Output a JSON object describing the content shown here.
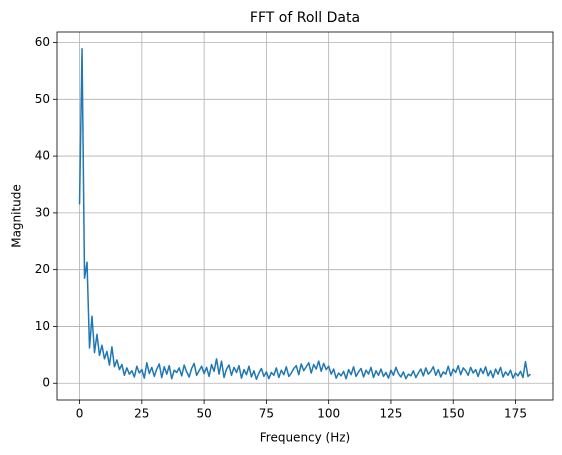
{
  "chart_data": {
    "type": "line",
    "title": "FFT of Roll Data",
    "x_label": "Frequency (Hz)",
    "y_label": "Magnitude",
    "color": "#1f77b4",
    "grid": true,
    "xlim": [
      -9.05,
      190.05
    ],
    "ylim": [
      -2.95,
      61.85
    ],
    "xticks": [
      0,
      25,
      50,
      75,
      100,
      125,
      150,
      175
    ],
    "yticks": [
      0,
      10,
      20,
      30,
      40,
      50,
      60
    ],
    "x": [
      0,
      1,
      2,
      3,
      4,
      5,
      6,
      7,
      8,
      9,
      10,
      11,
      12,
      13,
      14,
      15,
      16,
      17,
      18,
      19,
      20,
      21,
      22,
      23,
      24,
      25,
      26,
      27,
      28,
      29,
      30,
      31,
      32,
      33,
      34,
      35,
      36,
      37,
      38,
      39,
      40,
      41,
      42,
      43,
      44,
      45,
      46,
      47,
      48,
      49,
      50,
      51,
      52,
      53,
      54,
      55,
      56,
      57,
      58,
      59,
      60,
      61,
      62,
      63,
      64,
      65,
      66,
      67,
      68,
      69,
      70,
      71,
      72,
      73,
      74,
      75,
      76,
      77,
      78,
      79,
      80,
      81,
      82,
      83,
      84,
      85,
      86,
      87,
      88,
      89,
      90,
      91,
      92,
      93,
      94,
      95,
      96,
      97,
      98,
      99,
      100,
      101,
      102,
      103,
      104,
      105,
      106,
      107,
      108,
      109,
      110,
      111,
      112,
      113,
      114,
      115,
      116,
      117,
      118,
      119,
      120,
      121,
      122,
      123,
      124,
      125,
      126,
      127,
      128,
      129,
      130,
      131,
      132,
      133,
      134,
      135,
      136,
      137,
      138,
      139,
      140,
      141,
      142,
      143,
      144,
      145,
      146,
      147,
      148,
      149,
      150,
      151,
      152,
      153,
      154,
      155,
      156,
      157,
      158,
      159,
      160,
      161,
      162,
      163,
      164,
      165,
      166,
      167,
      168,
      169,
      170,
      171,
      172,
      173,
      174,
      175,
      176,
      177,
      178,
      179,
      180,
      181
    ],
    "values": [
      31.5,
      58.9,
      18.5,
      21.3,
      6.2,
      11.8,
      5.4,
      8.6,
      4.9,
      6.7,
      4.3,
      5.6,
      3.2,
      6.4,
      2.9,
      4.1,
      2.4,
      3.3,
      1.4,
      2.7,
      1.6,
      2.2,
      1.1,
      3.0,
      1.8,
      2.4,
      0.9,
      3.6,
      1.7,
      2.8,
      1.2,
      2.5,
      3.4,
      1.0,
      2.9,
      1.6,
      3.1,
      0.8,
      2.3,
      1.9,
      2.7,
      1.3,
      3.2,
      2.0,
      1.1,
      2.6,
      3.5,
      1.4,
      2.2,
      3.0,
      1.7,
      2.8,
      1.2,
      3.3,
      2.1,
      4.3,
      1.6,
      3.9,
      1.0,
      2.5,
      3.2,
      1.4,
      2.8,
      1.9,
      3.1,
      0.9,
      2.4,
      1.5,
      3.0,
      1.1,
      2.2,
      0.7,
      1.8,
      2.6,
      1.2,
      2.0,
      0.8,
      1.9,
      1.4,
      2.7,
      1.0,
      2.3,
      1.5,
      2.9,
      1.2,
      1.8,
      2.6,
      3.1,
      1.5,
      3.4,
      2.2,
      2.9,
      3.6,
      1.8,
      3.3,
      2.5,
      3.9,
      2.1,
      3.5,
      2.4,
      3.0,
      1.6,
      2.5,
      0.9,
      1.8,
      1.3,
      2.1,
      0.8,
      2.4,
      1.5,
      2.9,
      1.2,
      2.0,
      2.6,
      1.1,
      2.3,
      1.6,
      2.8,
      1.0,
      2.2,
      1.4,
      2.5,
      1.2,
      1.9,
      0.9,
      2.3,
      1.4,
      2.8,
      1.7,
      1.1,
      2.0,
      0.8,
      1.6,
      1.3,
      2.2,
      1.0,
      1.8,
      2.5,
      1.3,
      2.7,
      1.6,
      2.1,
      2.9,
      1.4,
      2.4,
      1.1,
      2.0,
      1.6,
      3.0,
      1.3,
      2.5,
      1.9,
      3.1,
      1.5,
      2.7,
      2.2,
      1.4,
      2.8,
      1.8,
      2.4,
      1.2,
      2.6,
      1.7,
      2.9,
      1.3,
      2.2,
      1.0,
      2.5,
      1.6,
      2.8,
      1.1,
      2.0,
      1.4,
      2.3,
      0.9,
      1.8,
      1.3,
      2.1,
      1.0,
      3.8,
      1.2,
      1.6
    ]
  }
}
